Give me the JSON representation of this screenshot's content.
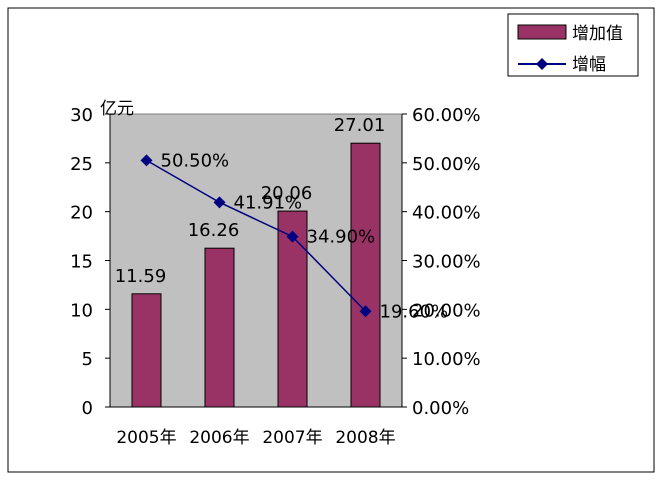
{
  "chart_data": {
    "type": "bar",
    "categories": [
      "2005年",
      "2006年",
      "2007年",
      "2008年"
    ],
    "y_unit_label": "亿元",
    "ylim": [
      0,
      30
    ],
    "y_ticks": [
      0,
      5,
      10,
      15,
      20,
      25,
      30
    ],
    "y2lim": [
      0,
      0.6
    ],
    "y2_ticks": [
      "0.00%",
      "10.00%",
      "20.00%",
      "30.00%",
      "40.00%",
      "50.00%",
      "60.00%"
    ],
    "grid": false,
    "legend_position": "top-right",
    "series": [
      {
        "name": "增加值",
        "type": "bar",
        "axis": "left",
        "values": [
          11.59,
          16.26,
          20.06,
          27.01
        ],
        "labels": [
          "11.59",
          "16.26",
          "20.06",
          "27.01"
        ]
      },
      {
        "name": "增幅",
        "type": "line",
        "axis": "right",
        "values": [
          0.505,
          0.4191,
          0.349,
          0.196
        ],
        "labels": [
          "50.50%",
          "41.91%",
          "34.90%",
          "19.60%"
        ]
      }
    ],
    "colors": {
      "bar_fill": "#993366",
      "line": "#000080",
      "plot_bg": "#c0c0c0"
    }
  }
}
